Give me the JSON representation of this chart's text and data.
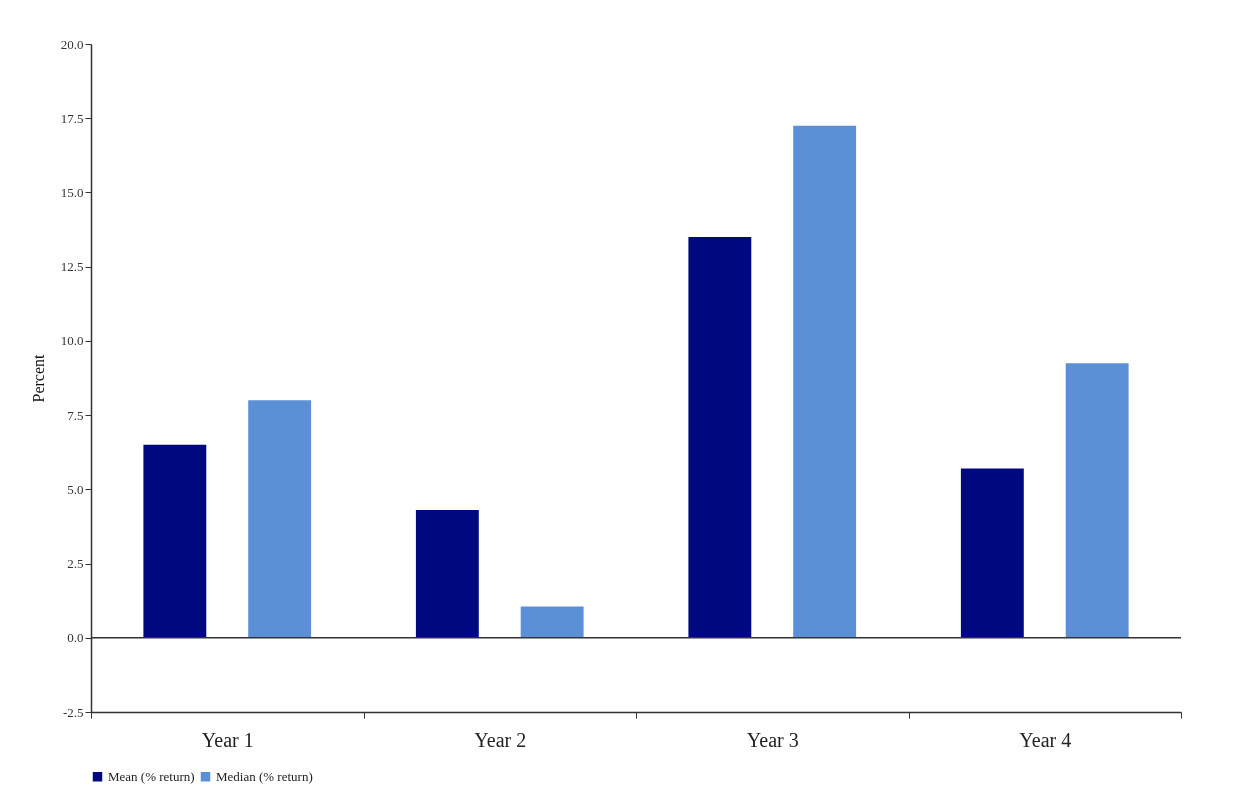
{
  "chart_data": {
    "type": "bar",
    "ylabel": "Percent",
    "categories": [
      "Year 1",
      "Year 2",
      "Year 3",
      "Year 4"
    ],
    "series": [
      {
        "name": "Mean (% return)",
        "color": "#00087f",
        "values": [
          6.5,
          4.3,
          13.5,
          5.7
        ]
      },
      {
        "name": "Median (% return)",
        "color": "#5b8fd6",
        "values": [
          8.0,
          1.05,
          17.25,
          9.25
        ]
      }
    ],
    "ylim": [
      -2.5,
      20
    ],
    "yticks": [
      {
        "value": -2.5,
        "label": "-2.5"
      },
      {
        "value": 0,
        "label": "0.0"
      },
      {
        "value": 2.5,
        "label": "2.5"
      },
      {
        "value": 5,
        "label": "5.0"
      },
      {
        "value": 7.5,
        "label": "7.5"
      },
      {
        "value": 10,
        "label": "10.0"
      },
      {
        "value": 12.5,
        "label": "12.5"
      },
      {
        "value": 15,
        "label": "15.0"
      },
      {
        "value": 17.5,
        "label": "17.5"
      },
      {
        "value": 20,
        "label": "20.0"
      }
    ],
    "ref_lines": [
      {
        "axis": "y",
        "value": 0
      }
    ],
    "grid": false,
    "legend": "bottom"
  }
}
